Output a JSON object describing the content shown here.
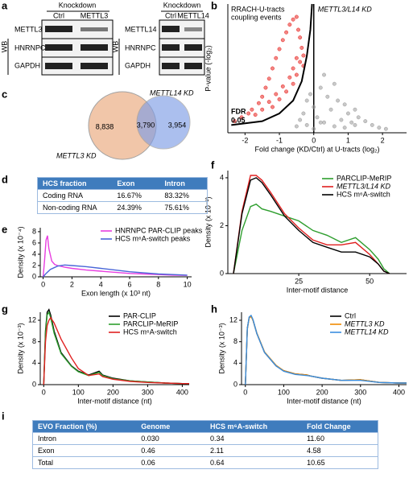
{
  "panel_labels": [
    "a",
    "b",
    "c",
    "d",
    "e",
    "f",
    "g",
    "h",
    "i"
  ],
  "western_blot": {
    "left": {
      "header": "Knockdown",
      "lanes": [
        "Ctrl",
        "METTL3"
      ],
      "rows": [
        "METTL3",
        "HNRNPC",
        "GAPDH"
      ],
      "method": "WB"
    },
    "right": {
      "header": "Knockdown",
      "lanes": [
        "Ctrl",
        "METTL14"
      ],
      "rows": [
        "METTL14",
        "HNRNPC",
        "GAPDH"
      ],
      "method": "WB"
    }
  },
  "venn": {
    "left_only": "8,838",
    "overlap": "3,790",
    "right_only": "3,954",
    "left_label": "METTL3 KD",
    "right_label": "METTL14 KD"
  },
  "table_d": {
    "rows": [
      [
        "HCS fraction",
        "Exon",
        "Intron"
      ],
      [
        "Coding RNA",
        "16.67%",
        "83.32%"
      ],
      [
        "Non-coding RNA",
        "24.39%",
        "75.61%"
      ]
    ]
  },
  "table_i": {
    "rows": [
      [
        "EVO Fraction (%)",
        "Genome",
        "HCS m⁶A-switch",
        "Fold Change"
      ],
      [
        "Intron",
        "0.030",
        "0.34",
        "11.60"
      ],
      [
        "Exon",
        "0.46",
        "2.11",
        "4.58"
      ],
      [
        "Total",
        "0.06",
        "0.64",
        "10.65"
      ]
    ]
  },
  "chart_data": [
    {
      "type": "scatter",
      "x_label": "Fold change (KD/Ctrl) at U-tracts (log₂)",
      "y_label": "P-value (-log₂)",
      "annotation_left": [
        "RRACH-U-tracts",
        "coupling events"
      ],
      "annotation_right": "METTL3/L14 KD",
      "threshold_label": [
        "FDR",
        "0.05"
      ],
      "xlim": [
        -2.5,
        2.7
      ],
      "ylim": [
        0,
        10
      ],
      "xticks": [
        -2,
        -1,
        0,
        1,
        2
      ],
      "series": [
        {
          "kind": "points",
          "color": "#e8231f",
          "x": [
            -2.3,
            -2.1,
            -1.9,
            -1.8,
            -1.6,
            -1.5,
            -1.4,
            -1.3,
            -1.2,
            -1.1,
            -1.0,
            -0.9,
            -0.8,
            -0.7,
            -0.6,
            -0.5,
            -0.45,
            -0.4,
            -0.35,
            -0.3,
            -1.7,
            -1.5,
            -1.3,
            -1.1,
            -0.9,
            -0.7,
            -0.6,
            -0.5,
            -0.4,
            -0.3,
            -1.2,
            -1.0,
            -0.8,
            -0.6,
            -0.5
          ],
          "values": [
            0.9,
            1.2,
            1.5,
            1.8,
            2.3,
            2.8,
            3.5,
            4.2,
            5.0,
            5.8,
            6.5,
            7.2,
            7.8,
            8.4,
            8.8,
            9.0,
            8.0,
            7.4,
            6.6,
            6.0,
            1.4,
            1.8,
            2.4,
            3.0,
            3.6,
            4.3,
            5.0,
            5.8,
            5.5,
            5.2,
            2.0,
            2.6,
            3.2,
            3.8,
            4.5
          ]
        },
        {
          "kind": "points",
          "color": "#9a9a9a",
          "x": [
            -0.5,
            -0.3,
            -0.2,
            -0.1,
            0.0,
            0.1,
            0.2,
            0.3,
            0.4,
            0.5,
            0.6,
            0.7,
            0.8,
            0.9,
            1.0,
            1.1,
            1.2,
            1.3,
            1.5,
            1.7,
            1.9,
            2.1,
            0.3,
            0.6,
            0.9,
            1.2,
            -0.4,
            -0.2,
            0.0,
            0.2
          ],
          "values": [
            0.5,
            1.5,
            2.5,
            3.0,
            2.0,
            1.2,
            3.5,
            4.5,
            2.8,
            1.8,
            3.8,
            2.5,
            1.0,
            2.2,
            1.5,
            0.8,
            1.8,
            1.2,
            0.9,
            0.6,
            0.4,
            0.3,
            0.8,
            0.5,
            0.4,
            0.6,
            1.0,
            0.6,
            0.3,
            0.8
          ]
        },
        {
          "kind": "line",
          "color": "#000000",
          "x": [
            -2.4,
            -1.5,
            -1.0,
            -0.6,
            -0.35,
            -0.2,
            -0.1,
            -0.05
          ],
          "values": [
            0.6,
            0.9,
            1.5,
            2.5,
            4,
            6,
            8,
            10
          ]
        }
      ]
    },
    {
      "type": "line",
      "x_label": "Exon length (x 10³ nt)",
      "y_label": "Density (x 10⁻⁴)",
      "xlim": [
        -0.2,
        10.3
      ],
      "ylim": [
        0,
        8.7
      ],
      "xticks": [
        0,
        2,
        4,
        6,
        8,
        10
      ],
      "yticks": [
        0,
        2,
        4,
        6,
        8
      ],
      "series": [
        {
          "name": "HNRNPC PAR-CLIP peaks",
          "color": "#e83ee0",
          "x": [
            0,
            0.1,
            0.2,
            0.3,
            0.4,
            0.6,
            0.8,
            1,
            1.5,
            2,
            3,
            4,
            5,
            6,
            7,
            8,
            9,
            10
          ],
          "values": [
            0,
            3,
            6.5,
            7.3,
            5,
            2.8,
            2.2,
            2,
            1.7,
            1.5,
            1.2,
            1,
            0.8,
            0.6,
            0.5,
            0.4,
            0.3,
            0.25
          ]
        },
        {
          "name": "HCS m⁶A-switch peaks",
          "color": "#4a66d8",
          "x": [
            0,
            0.2,
            0.5,
            1.0,
            1.5,
            2,
            3,
            4,
            5,
            6,
            7,
            8,
            9,
            10
          ],
          "values": [
            0,
            0.6,
            1.3,
            1.9,
            2.1,
            2.0,
            1.8,
            1.5,
            1.2,
            0.9,
            0.7,
            0.5,
            0.4,
            0.3
          ]
        }
      ]
    },
    {
      "type": "line",
      "x_label": "Inter-motif distance",
      "y_label": "Density (x 10⁻²)",
      "xlim": [
        0,
        63
      ],
      "ylim": [
        0,
        4.3
      ],
      "xticks": [
        25,
        50
      ],
      "yticks": [
        0,
        2,
        4
      ],
      "x": [
        2,
        5,
        8,
        10,
        12,
        15,
        20,
        25,
        30,
        35,
        40,
        45,
        50,
        53,
        55,
        57
      ],
      "series": [
        {
          "name": "PARCLIP-MeRIP",
          "color": "#2e9e2e",
          "values": [
            0,
            1.8,
            2.8,
            2.9,
            2.7,
            2.6,
            2.4,
            2.2,
            1.8,
            1.6,
            1.3,
            1.5,
            1.0,
            0.6,
            0.2,
            0
          ]
        },
        {
          "name": "METTL3/L14 KD",
          "italic": true,
          "color": "#e02020",
          "values": [
            0,
            2.6,
            4.1,
            4.1,
            3.9,
            3.4,
            2.5,
            1.9,
            1.4,
            1.2,
            1.2,
            1.3,
            0.8,
            0.4,
            0.1,
            0
          ]
        },
        {
          "name": "HCS m⁶A-switch",
          "color": "#000000",
          "values": [
            0,
            2.5,
            3.9,
            4.0,
            3.8,
            3.3,
            2.4,
            1.8,
            1.3,
            1.1,
            0.9,
            0.9,
            0.7,
            0.4,
            0.1,
            0
          ]
        }
      ]
    },
    {
      "type": "line",
      "x_label": "Inter-motif distance (nt)",
      "y_label": "Density (x 10⁻³)",
      "xlim": [
        -10,
        420
      ],
      "ylim": [
        0,
        13.5
      ],
      "xticks": [
        0,
        100,
        200,
        300,
        400
      ],
      "yticks": [
        0,
        4,
        8,
        12
      ],
      "x": [
        0,
        5,
        10,
        15,
        20,
        30,
        50,
        80,
        100,
        130,
        160,
        170,
        200,
        250,
        300,
        350,
        400,
        420
      ],
      "series": [
        {
          "name": "PAR-CLIP",
          "color": "#000000",
          "values": [
            0,
            10,
            13.5,
            14,
            13,
            10,
            6,
            3.5,
            2.5,
            1.8,
            2.5,
            1.8,
            1.2,
            0.7,
            0.5,
            0.3,
            0.2,
            0.2
          ]
        },
        {
          "name": "PARCLIP-MeRIP",
          "color": "#2e9e2e",
          "values": [
            0,
            9.5,
            13,
            13.5,
            12.5,
            9.6,
            5.8,
            3.4,
            2.4,
            1.7,
            2.3,
            1.7,
            1.1,
            0.7,
            0.5,
            0.3,
            0.2,
            0.2
          ]
        },
        {
          "name": "HCS m⁶A-switch",
          "color": "#e02020",
          "values": [
            0,
            8,
            11,
            12,
            12.5,
            11.5,
            8.5,
            5,
            3,
            1.7,
            2,
            1.5,
            1,
            0.6,
            0.4,
            0.3,
            0.2,
            0.2
          ]
        }
      ]
    },
    {
      "type": "line",
      "x_label": "Inter-motif distance (nt)",
      "y_label": "Density (x 10⁻³)",
      "legend_text_colored": true,
      "xlim": [
        -10,
        420
      ],
      "ylim": [
        0,
        13.5
      ],
      "xticks": [
        0,
        100,
        200,
        300,
        400
      ],
      "yticks": [
        0,
        4,
        8,
        12
      ],
      "x": [
        0,
        5,
        10,
        15,
        20,
        30,
        50,
        80,
        100,
        130,
        160,
        170,
        200,
        250,
        300,
        350,
        400,
        420
      ],
      "series": [
        {
          "name": "Ctrl",
          "color": "#000000",
          "values": [
            0,
            10.5,
            12.5,
            12.8,
            12,
            9.5,
            6,
            3.5,
            2.6,
            2,
            1.8,
            1.6,
            1.2,
            0.8,
            0.9,
            0.4,
            0.3,
            0.3
          ]
        },
        {
          "name": "METTL3 KD",
          "italic": true,
          "color": "#f08a00",
          "values": [
            0,
            10.3,
            12.4,
            12.7,
            12,
            9.6,
            6.1,
            3.6,
            2.6,
            2,
            1.8,
            1.6,
            1.2,
            0.8,
            0.9,
            0.4,
            0.3,
            0.3
          ]
        },
        {
          "name": "METTL14 KD",
          "italic": true,
          "color": "#3a8ee0",
          "values": [
            0,
            10.4,
            12.6,
            12.9,
            12.1,
            9.5,
            6,
            3.5,
            2.5,
            1.9,
            1.7,
            1.6,
            1.2,
            0.8,
            0.8,
            0.4,
            0.3,
            0.3
          ]
        }
      ]
    }
  ]
}
